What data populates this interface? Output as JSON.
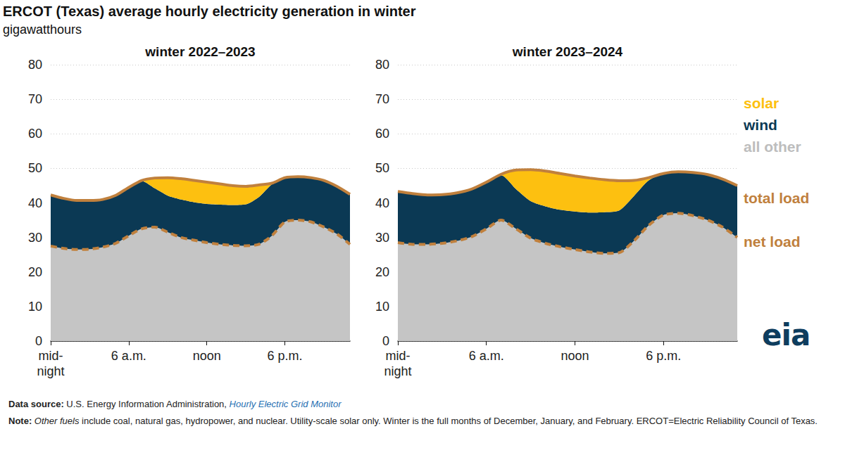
{
  "title": "ERCOT (Texas) average hourly electricity generation in winter",
  "subtitle": "gigawatthours",
  "annotations": {
    "source": {
      "label": "Data source:",
      "text": "U.S. Energy Information Administration,",
      "link": "Hourly Electric Grid Monitor"
    },
    "note": {
      "label": "Note:",
      "italic": "Other fuels",
      "text": "include coal, natural gas, hydropower, and nuclear. Utility-scale solar only. Winter is the full months of December, January, and February. ERCOT=Electric Reliability Council of Texas."
    },
    "logo": "eia"
  },
  "chart_data": [
    {
      "type": "area",
      "title": "winter 2022–2023",
      "categories": [
        "mid-\nnight",
        null,
        null,
        null,
        null,
        null,
        "6 a.m.",
        null,
        null,
        null,
        null,
        null,
        "noon",
        null,
        null,
        null,
        null,
        null,
        "6 p.m.",
        null,
        null,
        null,
        null,
        null
      ],
      "ylim": [
        0,
        80
      ],
      "yticks": [
        0,
        10,
        20,
        30,
        40,
        50,
        60,
        70,
        80
      ],
      "grid": true,
      "stacked": true,
      "series": [
        {
          "name": "all other",
          "type": "area",
          "color": "#c5c5c5",
          "values": [
            27.5,
            26.8,
            26.5,
            26.6,
            27.2,
            28.3,
            30.5,
            32.5,
            33.0,
            31.5,
            30.0,
            29.2,
            28.5,
            28.0,
            27.7,
            27.6,
            28.0,
            30.5,
            34.5,
            35.0,
            34.5,
            33.0,
            31.0,
            28.0
          ]
        },
        {
          "name": "wind",
          "type": "area",
          "color": "#0b3954",
          "values": [
            14.8,
            14.5,
            14.2,
            14.1,
            13.8,
            13.9,
            14.0,
            13.8,
            11.2,
            10.6,
            11.0,
            11.0,
            11.2,
            11.5,
            11.7,
            12.0,
            13.7,
            14.9,
            12.8,
            12.6,
            12.8,
            13.5,
            13.8,
            14.5
          ]
        },
        {
          "name": "solar",
          "type": "area",
          "color": "#fdc010",
          "values": [
            0,
            0,
            0,
            0,
            0,
            0,
            0,
            0.2,
            3.0,
            5.2,
            6.0,
            6.3,
            6.3,
            6.0,
            5.6,
            5.2,
            3.5,
            0.3,
            0,
            0,
            0,
            0,
            0,
            0
          ]
        },
        {
          "name": "total load",
          "type": "line",
          "color": "#c0803d",
          "line_style": "solid",
          "values": [
            42.3,
            41.3,
            40.7,
            40.7,
            41.0,
            42.2,
            44.5,
            46.5,
            47.2,
            47.3,
            47.0,
            46.5,
            46.0,
            45.5,
            45.0,
            44.8,
            45.2,
            45.7,
            47.3,
            47.6,
            47.3,
            46.5,
            44.8,
            42.5
          ]
        },
        {
          "name": "net load",
          "type": "line",
          "color": "#c0803d",
          "line_style": "dashed",
          "values": [
            27.5,
            26.8,
            26.5,
            26.6,
            27.2,
            28.3,
            30.5,
            32.5,
            33.0,
            31.5,
            30.0,
            29.2,
            28.5,
            28.0,
            27.7,
            27.6,
            28.0,
            30.5,
            34.5,
            35.0,
            34.5,
            33.0,
            31.0,
            28.0
          ]
        }
      ]
    },
    {
      "type": "area",
      "title": "winter 2023–2024",
      "categories": [
        "mid-\nnight",
        null,
        null,
        null,
        null,
        null,
        "6 a.m.",
        null,
        null,
        null,
        null,
        null,
        "noon",
        null,
        null,
        null,
        null,
        null,
        "6 p.m.",
        null,
        null,
        null,
        null,
        null
      ],
      "ylim": [
        0,
        80
      ],
      "yticks": [
        0,
        10,
        20,
        30,
        40,
        50,
        60,
        70,
        80
      ],
      "grid": true,
      "stacked": true,
      "series": [
        {
          "name": "all other",
          "type": "area",
          "color": "#c5c5c5",
          "values": [
            28.5,
            28.0,
            28.0,
            28.3,
            29.0,
            30.2,
            32.5,
            35.0,
            32.5,
            29.8,
            28.3,
            27.3,
            26.5,
            25.8,
            25.4,
            25.6,
            29.0,
            33.5,
            36.5,
            37.0,
            36.3,
            35.0,
            33.0,
            30.0
          ]
        },
        {
          "name": "wind",
          "type": "area",
          "color": "#0b3954",
          "values": [
            14.8,
            14.7,
            14.3,
            14.1,
            13.9,
            13.8,
            13.5,
            13.0,
            11.5,
            10.7,
            10.7,
            10.7,
            11.0,
            11.4,
            11.9,
            12.2,
            13.0,
            13.0,
            12.0,
            12.0,
            12.5,
            13.2,
            13.9,
            15.0
          ]
        },
        {
          "name": "solar",
          "type": "area",
          "color": "#fdc010",
          "values": [
            0,
            0,
            0,
            0,
            0,
            0,
            0,
            0.3,
            5.5,
            9.1,
            10.2,
            10.5,
            10.3,
            10.0,
            9.4,
            8.6,
            4.5,
            0.8,
            0,
            0,
            0,
            0,
            0,
            0
          ]
        },
        {
          "name": "total load",
          "type": "line",
          "color": "#c0803d",
          "line_style": "solid",
          "values": [
            43.3,
            42.7,
            42.3,
            42.4,
            42.9,
            44.0,
            46.0,
            48.3,
            49.5,
            49.6,
            49.2,
            48.5,
            47.8,
            47.2,
            46.7,
            46.4,
            46.5,
            47.3,
            48.5,
            49.0,
            48.8,
            48.2,
            46.9,
            45.0
          ]
        },
        {
          "name": "net load",
          "type": "line",
          "color": "#c0803d",
          "line_style": "dashed",
          "values": [
            28.5,
            28.0,
            28.0,
            28.3,
            29.0,
            30.2,
            32.5,
            35.0,
            32.5,
            29.8,
            28.3,
            27.3,
            26.5,
            25.8,
            25.4,
            25.6,
            29.0,
            33.5,
            36.5,
            37.0,
            36.3,
            35.0,
            33.0,
            30.0
          ]
        }
      ]
    }
  ]
}
